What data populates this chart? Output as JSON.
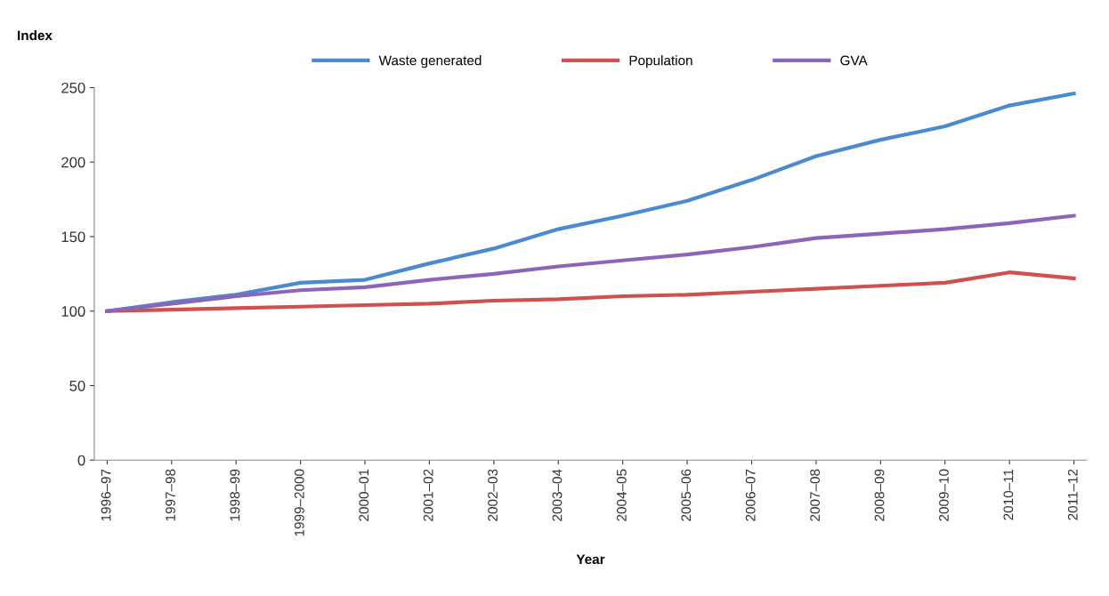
{
  "chart_data": {
    "type": "line",
    "ylabel": "Index",
    "xlabel": "Year",
    "categories": [
      "1996–97",
      "1997–98",
      "1998–99",
      "1999–2000",
      "2000–01",
      "2001–02",
      "2002–03",
      "2003–04",
      "2004–05",
      "2005–06",
      "2006–07",
      "2007–08",
      "2008–09",
      "2009–10",
      "2010–11",
      "2011–12"
    ],
    "series": [
      {
        "name": "Waste generated",
        "color": "#4a8bd0",
        "values": [
          100,
          106,
          111,
          119,
          121,
          132,
          142,
          155,
          164,
          174,
          188,
          204,
          215,
          224,
          238,
          246
        ]
      },
      {
        "name": "Population",
        "color": "#d0504d",
        "values": [
          100,
          101,
          102,
          103,
          104,
          105,
          107,
          108,
          110,
          111,
          113,
          115,
          117,
          119,
          126,
          122
        ]
      },
      {
        "name": "GVA",
        "color": "#8b65b8",
        "values": [
          100,
          105,
          110,
          114,
          116,
          121,
          125,
          130,
          134,
          138,
          143,
          149,
          152,
          155,
          159,
          164
        ]
      }
    ],
    "ylim": [
      0,
      250
    ],
    "yticks": [
      0,
      50,
      100,
      150,
      200,
      250
    ],
    "grid": false,
    "legend": "top",
    "marker": "none",
    "line_style": "solid"
  }
}
